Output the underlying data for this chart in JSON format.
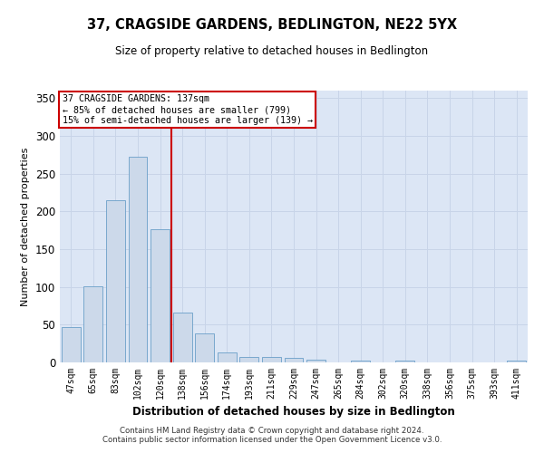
{
  "title": "37, CRAGSIDE GARDENS, BEDLINGTON, NE22 5YX",
  "subtitle": "Size of property relative to detached houses in Bedlington",
  "xlabel": "Distribution of detached houses by size in Bedlington",
  "ylabel": "Number of detached properties",
  "categories": [
    "47sqm",
    "65sqm",
    "83sqm",
    "102sqm",
    "120sqm",
    "138sqm",
    "156sqm",
    "174sqm",
    "193sqm",
    "211sqm",
    "229sqm",
    "247sqm",
    "265sqm",
    "284sqm",
    "302sqm",
    "320sqm",
    "338sqm",
    "356sqm",
    "375sqm",
    "393sqm",
    "411sqm"
  ],
  "values": [
    47,
    101,
    215,
    272,
    176,
    66,
    39,
    13,
    7,
    7,
    6,
    4,
    0,
    2,
    0,
    3,
    0,
    0,
    0,
    0,
    2
  ],
  "bar_color": "#ccd9ea",
  "bar_edge_color": "#6a9fc8",
  "grid_color": "#c8d4e8",
  "background_color": "#dce6f5",
  "annotation_box_color": "#ffffff",
  "annotation_box_edge": "#cc0000",
  "annotation_line_color": "#cc0000",
  "annotation_text_line1": "37 CRAGSIDE GARDENS: 137sqm",
  "annotation_text_line2": "← 85% of detached houses are smaller (799)",
  "annotation_text_line3": "15% of semi-detached houses are larger (139) →",
  "red_line_x": 4.5,
  "ylim": [
    0,
    360
  ],
  "yticks": [
    0,
    50,
    100,
    150,
    200,
    250,
    300,
    350
  ],
  "footnote1": "Contains HM Land Registry data © Crown copyright and database right 2024.",
  "footnote2": "Contains public sector information licensed under the Open Government Licence v3.0."
}
